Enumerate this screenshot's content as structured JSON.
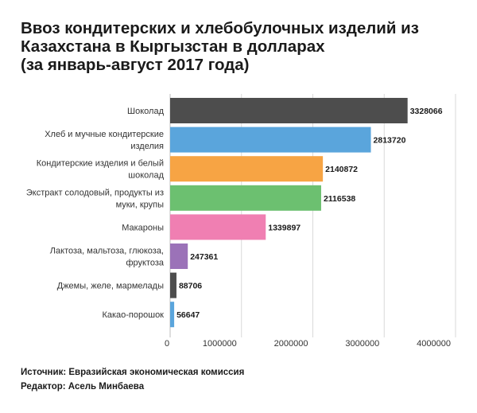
{
  "title_lines": [
    "Ввоз кондитерских и хлебобулочных изделий из",
    "Казахстана в Кыргызстан в долларах",
    "(за январь-август 2017 года)"
  ],
  "footer": {
    "source": "Источник: Евразийская экономическая комиссия",
    "editor": "Редактор: Асель Минбаева"
  },
  "chart_data": {
    "type": "bar",
    "orientation": "horizontal",
    "xlim": [
      0,
      4000000
    ],
    "x_ticks": [
      "0",
      "1000000",
      "2000000",
      "3000000",
      "4000000"
    ],
    "grid": true,
    "categories": [
      [
        "Шоколад"
      ],
      [
        "Хлеб и мучные кондитерские",
        "изделия"
      ],
      [
        "Кондитерские изделия и белый",
        "шоколад"
      ],
      [
        "Экстракт солодовый, продукты из",
        "муки, крупы"
      ],
      [
        "Макароны"
      ],
      [
        "Лактоза, мальтоза, глюкоза,",
        "фруктоза"
      ],
      [
        "Джемы, желе, мармелады"
      ],
      [
        "Какао-порошок"
      ]
    ],
    "values": [
      3328066,
      2813720,
      2140872,
      2116538,
      1339897,
      247361,
      88706,
      56647
    ],
    "value_labels": [
      "3328066",
      "2813720",
      "2140872",
      "2116538",
      "1339897",
      "247361",
      "88706",
      "56647"
    ],
    "colors": [
      "#4d4d4d",
      "#5aa5dc",
      "#f7a444",
      "#6cc070",
      "#f07fb2",
      "#9b72b8",
      "#4d4d4d",
      "#5aa5dc"
    ]
  }
}
